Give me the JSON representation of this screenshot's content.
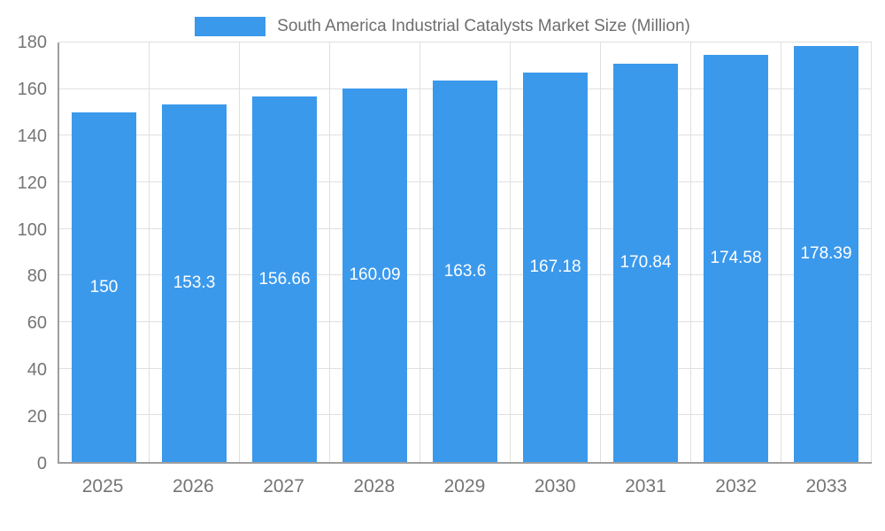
{
  "chart_data": {
    "type": "bar",
    "title": "South America Industrial Catalysts Market Size (Million)",
    "categories": [
      "2025",
      "2026",
      "2027",
      "2028",
      "2029",
      "2030",
      "2031",
      "2032",
      "2033"
    ],
    "values": [
      150,
      153.3,
      156.66,
      160.09,
      163.6,
      167.18,
      170.84,
      174.58,
      178.39
    ],
    "xlabel": "",
    "ylabel": "",
    "ylim": [
      0,
      180
    ],
    "ytick_step": 20,
    "grid": true,
    "legend_position": "top",
    "bar_color": "#3B99EC",
    "grid_color": "#e0e0e0",
    "axis_color": "#9e9e9e",
    "label_color": "#757575",
    "value_label_color": "#ffffff"
  }
}
